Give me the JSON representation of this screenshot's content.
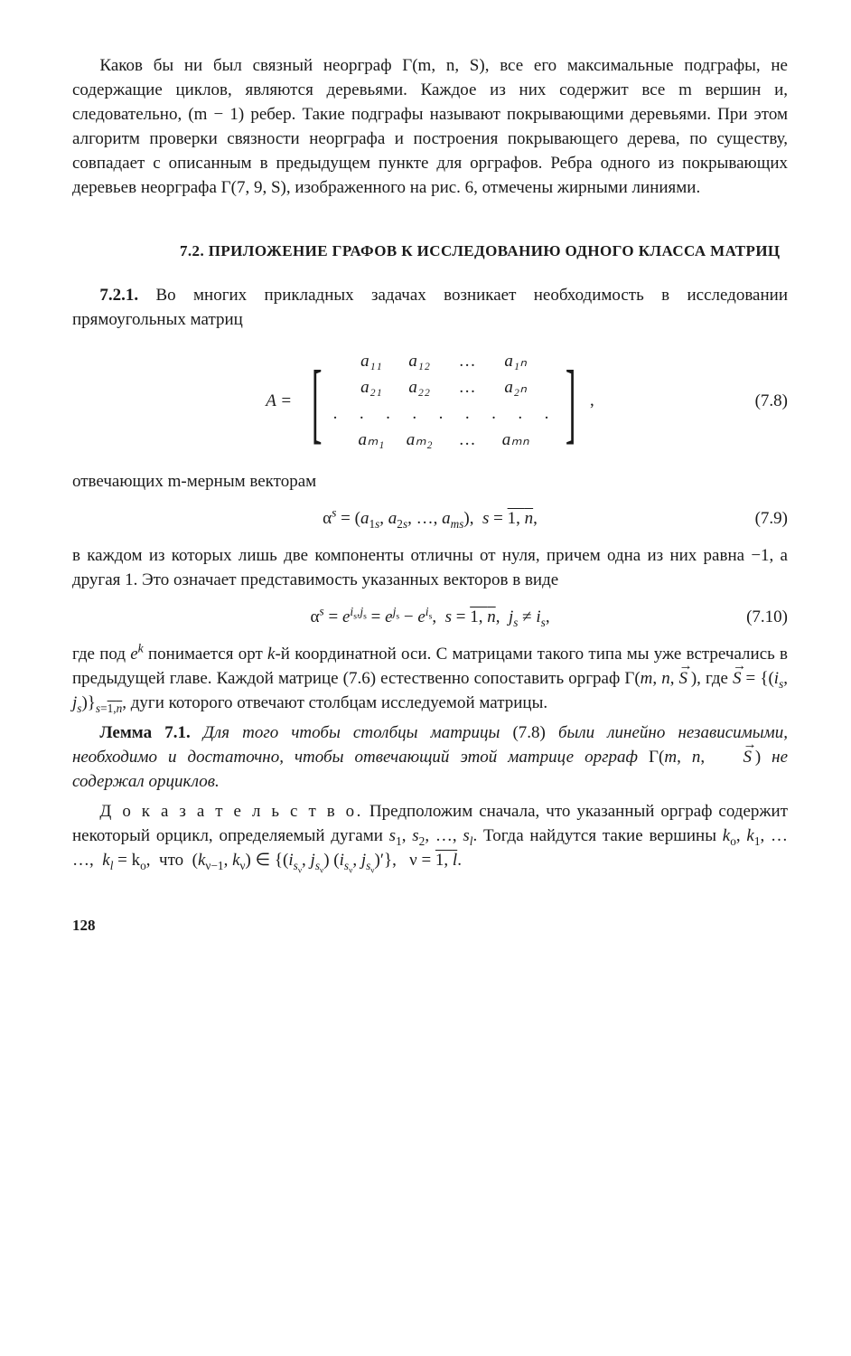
{
  "para1": "Каков бы ни был связный неорграф Γ(m, n, S), все его максимальные подграфы, не содержащие циклов, являются деревьями. Каждое из них содержит все m вершин и, следовательно, (m − 1) ребер. Такие подграфы называют покрывающими деревьями. При этом алгоритм проверки связности неорграфа и построения покрывающего дерева, по существу, совпадает с описанным в предыдущем пункте для орграфов. Ребра одного из покрывающих деревьев неорграфа Γ(7, 9, S), изображенного на рис. 6, отмечены жирными линиями.",
  "sectionHeading": "7.2. ПРИЛОЖЕНИЕ ГРАФОВ К ИССЛЕДОВАНИЮ ОДНОГО КЛАССА МАТРИЦ",
  "para2_lead": "7.2.1.",
  "para2_rest": " Во многих прикладных задачах возникает необходимость в исследовании прямоугольных матриц",
  "eq78": {
    "prefix": "A =",
    "rows": [
      [
        "a₁₁",
        "a₁₂",
        "…",
        "a₁ₙ"
      ],
      [
        "a₂₁",
        "a₂₂",
        "…",
        "a₂ₙ"
      ],
      [
        ".",
        ".",
        ".",
        "."
      ],
      [
        "aₘ₁",
        "aₘ₂",
        "…",
        "aₘₙ"
      ]
    ],
    "suffix": ",",
    "num": "(7.8)"
  },
  "para3": "отвечающих m-мерным векторам",
  "eq79": {
    "text_html": "α<sup><i>s</i></sup> = (<i>a</i><sub>1<i>s</i></sub>, <i>a</i><sub>2<i>s</i></sub>, …, <i>a</i><sub><i>ms</i></sub>),&nbsp; <i>s</i> = <span class=\"overline\">1, <i>n</i></span>,",
    "num": "(7.9)"
  },
  "para4": "в каждом из которых лишь две компоненты отличны от нуля, причем одна из них равна −1, а другая 1. Это означает представимость указанных векторов в виде",
  "eq710": {
    "text_html": "α<sup><i>s</i></sup> = <i>e</i><sup><i>i</i><sub>s</sub>,<i>j</i><sub>s</sub></sup> = <i>e</i><sup><i>j</i><sub>s</sub></sup> − <i>e</i><sup><i>i</i><sub>s</sub></sup>,&nbsp; <i>s</i> = <span class=\"overline\">1, <i>n</i></span>,&nbsp; <i>j</i><sub><i>s</i></sub> ≠ <i>i</i><sub><i>s</i></sub>,",
    "num": "(7.10)"
  },
  "para5_html": "где под <i>e</i><sup><i>k</i></sup> понимается орт <i>k</i>-й координатной оси. С матрицами такого типа мы уже встречались в предыдущей главе. Каждой матрице (7.6) естественно сопоставить орграф Γ(<i>m</i>,&nbsp;<i>n</i>,&nbsp;<span class=\"arrow-over\"><i>S</i></span>&thinsp;), где <span class=\"arrow-over\"><i>S</i></span> = {(<i>i</i><sub><i>s</i></sub>, <i>j</i><sub><i>s</i></sub>)}<sub><i>s</i>=<span class=\"overline\">1,<i>n</i></span></sub>, дуги которого отвечают столбцам исследуемой матрицы.",
  "lemma_label": "Лемма 7.1.",
  "lemma_body_html": " <i>Для того чтобы столбцы матрицы</i> (7.8) <i>были линейно независимыми, необходимо и достаточно, чтобы отвечающий этой матрице орграф</i> Γ(<i>m</i>, <i>n</i>, <span class=\"arrow-over\"><i>S</i></span>&thinsp;) <i>не содержал орциклов.</i>",
  "proof_label": "Д о к а з а т е л ь с т в о.",
  "proof_body_html": " Предположим сначала, что указанный орграф содержит некоторый орцикл, определяемый дугами <i>s</i><sub>1</sub>, <i>s</i><sub>2</sub>, …, <i>s</i><sub><i>l</i></sub>. Тогда найдутся такие вершины <i>k</i><sub>o</sub>, <i>k</i><sub>1</sub>, … …,&nbsp;&nbsp;<i>k</i><sub><i>l</i></sub> = k<sub>o</sub>,&nbsp;&nbsp;что&nbsp;&nbsp;(<i>k</i><sub>ν−1</sub>, <i>k</i><sub>ν</sub>) ∈ {(<i>i</i><sub><i>s</i><sub>ν</sub></sub>, <i>j</i><sub><i>s</i><sub>ν</sub></sub>)&nbsp;(<i>i</i><sub><i>s</i><sub>ν</sub></sub>, <i>j</i><sub><i>s</i><sub>ν</sub></sub>)′},&nbsp;&nbsp;&nbsp;ν = <span class=\"overline\">1, <i>l</i></span>.",
  "pageNumber": "128"
}
